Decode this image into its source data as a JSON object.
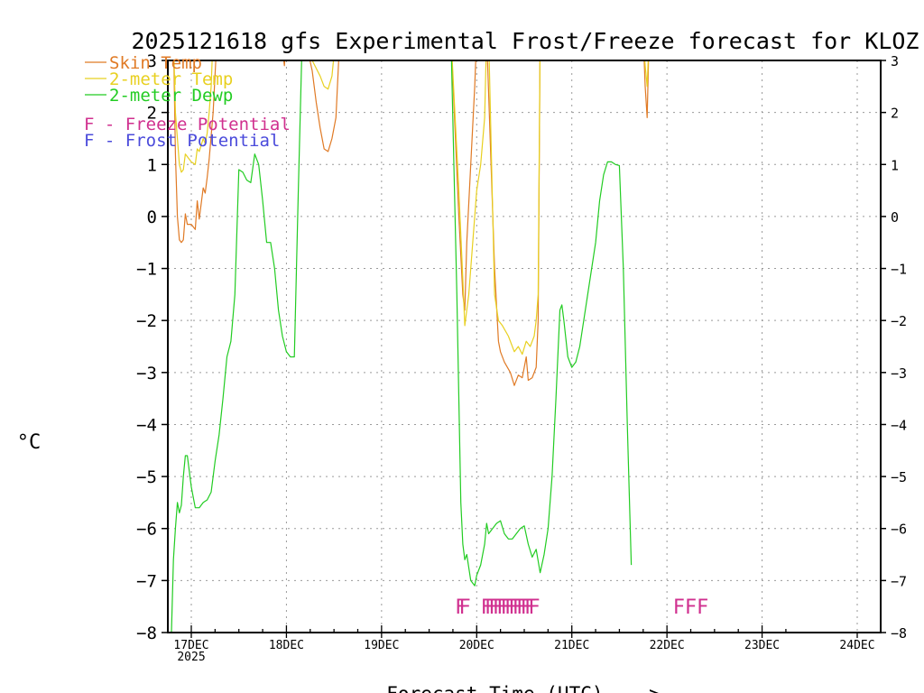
{
  "chart_data": {
    "type": "line",
    "title": "2025121618 gfs Experimental Frost/Freeze forecast for KLOZ",
    "xlabel": "Forecast Time (UTC) --->",
    "ylabel": "°C",
    "ylim": [
      -8,
      3
    ],
    "yticks": [
      3,
      2,
      1,
      0,
      -1,
      -2,
      -3,
      -4,
      -5,
      -6,
      -7,
      -8
    ],
    "ytick_labels": [
      "3",
      "2",
      "1",
      "0",
      "−1",
      "−2",
      "−3",
      "−4",
      "−5",
      "−6",
      "−7",
      "−8"
    ],
    "xlim_hours": [
      -6,
      150
    ],
    "xticks": [
      {
        "hour": 0,
        "label": "17DEC",
        "sub": "2025"
      },
      {
        "hour": 24,
        "label": "18DEC"
      },
      {
        "hour": 48,
        "label": "19DEC"
      },
      {
        "hour": 72,
        "label": "20DEC"
      },
      {
        "hour": 96,
        "label": "21DEC"
      },
      {
        "hour": 120,
        "label": "22DEC"
      },
      {
        "hour": 144,
        "label": "23DEC"
      },
      {
        "hour": 168,
        "label": "24DEC"
      }
    ],
    "grid": true,
    "legend": [
      {
        "label": "Skin Temp",
        "color": "#e07a25"
      },
      {
        "label": "2-meter Temp",
        "color": "#e8d020"
      },
      {
        "label": "2-meter Dewp",
        "color": "#22cc22"
      }
    ],
    "potential_legend": [
      {
        "letter": "F",
        "text": " - Freeze Potential",
        "color": "#d0308f"
      },
      {
        "letter": "F",
        "text": " - Frost Potential",
        "color": "#4b4bdb"
      }
    ],
    "series": [
      {
        "name": "Skin Temp",
        "color": "#e07a25",
        "points": [
          [
            -4.5,
            3.5
          ],
          [
            -4,
            1.2
          ],
          [
            -3.5,
            0.0
          ],
          [
            -3,
            -0.45
          ],
          [
            -2.5,
            -0.5
          ],
          [
            -2,
            -0.45
          ],
          [
            -1.5,
            0.05
          ],
          [
            -1,
            -0.15
          ],
          [
            0,
            -0.15
          ],
          [
            1,
            -0.25
          ],
          [
            1.5,
            0.3
          ],
          [
            2,
            -0.05
          ],
          [
            3,
            0.55
          ],
          [
            3.5,
            0.45
          ],
          [
            4,
            0.75
          ],
          [
            4.5,
            1.1
          ],
          [
            5.5,
            2.0
          ],
          [
            6.5,
            3.5
          ],
          null,
          [
            22.5,
            3.5
          ],
          [
            23.5,
            2.9
          ],
          [
            24,
            3.5
          ],
          null,
          [
            28.5,
            3.5
          ],
          [
            30.5,
            2.8
          ],
          [
            31.5,
            2.2
          ],
          [
            32.5,
            1.7
          ],
          [
            33.5,
            1.3
          ],
          [
            34.5,
            1.25
          ],
          [
            35.5,
            1.5
          ],
          [
            36.5,
            1.9
          ],
          [
            37.5,
            3.5
          ],
          null,
          [
            65.5,
            3.5
          ],
          [
            67.5,
            0.0
          ],
          [
            68.5,
            -1.5
          ],
          [
            69,
            -1.8
          ],
          [
            69.5,
            -0.5
          ],
          [
            70.5,
            1.0
          ],
          [
            71.5,
            2.5
          ],
          [
            72,
            3.5
          ],
          null,
          [
            74.5,
            3.5
          ],
          [
            76.5,
            -1.0
          ],
          [
            77.5,
            -2.4
          ],
          [
            78,
            -2.6
          ],
          [
            79,
            -2.8
          ],
          [
            80.5,
            -3.0
          ],
          [
            81.5,
            -3.25
          ],
          [
            82.5,
            -3.05
          ],
          [
            83.5,
            -3.1
          ],
          [
            84.5,
            -2.7
          ],
          [
            85,
            -3.15
          ],
          [
            86,
            -3.1
          ],
          [
            87,
            -2.9
          ],
          [
            87.5,
            -2.0
          ],
          [
            88,
            3.5
          ],
          null,
          [
            114,
            3.5
          ],
          [
            114.5,
            2.5
          ],
          [
            115,
            1.9
          ],
          [
            115.5,
            3.5
          ]
        ]
      },
      {
        "name": "2-meter Temp",
        "color": "#e8d020",
        "points": [
          [
            -4.5,
            3.5
          ],
          [
            -4,
            2.0
          ],
          [
            -3.5,
            1.5
          ],
          [
            -3,
            1.0
          ],
          [
            -2.5,
            0.85
          ],
          [
            -2,
            0.9
          ],
          [
            -1.5,
            1.2
          ],
          [
            -1,
            1.15
          ],
          [
            0,
            1.05
          ],
          [
            1,
            1.0
          ],
          [
            1.5,
            1.3
          ],
          [
            2,
            1.25
          ],
          [
            3,
            1.5
          ],
          [
            3.5,
            1.4
          ],
          [
            4,
            1.6
          ],
          [
            4.5,
            2.0
          ],
          [
            5,
            2.5
          ],
          [
            5.5,
            3.5
          ],
          null,
          [
            28,
            3.5
          ],
          [
            30.5,
            3.0
          ],
          [
            32.5,
            2.7
          ],
          [
            33.5,
            2.5
          ],
          [
            34.5,
            2.45
          ],
          [
            35.5,
            2.7
          ],
          [
            36.5,
            3.5
          ],
          null,
          [
            65.5,
            3.5
          ],
          [
            67.5,
            0.5
          ],
          [
            68.5,
            -1.2
          ],
          [
            69,
            -2.1
          ],
          [
            70,
            -1.5
          ],
          [
            71,
            -0.5
          ],
          [
            72,
            0.5
          ],
          [
            73,
            1.0
          ],
          [
            74,
            1.9
          ],
          [
            74.5,
            3.5
          ],
          null,
          [
            75,
            3.5
          ],
          [
            76.5,
            -1.5
          ],
          [
            77.5,
            -2.0
          ],
          [
            78.5,
            -2.1
          ],
          [
            80,
            -2.3
          ],
          [
            81.5,
            -2.6
          ],
          [
            82.5,
            -2.5
          ],
          [
            83.5,
            -2.65
          ],
          [
            84.5,
            -2.4
          ],
          [
            85.5,
            -2.5
          ],
          [
            86.5,
            -2.3
          ],
          [
            87,
            -2.0
          ],
          [
            87.5,
            -1.5
          ],
          [
            88,
            3.5
          ],
          null,
          [
            114,
            3.5
          ],
          [
            114.5,
            2.9
          ],
          [
            115,
            2.5
          ],
          [
            115.5,
            3.5
          ]
        ]
      },
      {
        "name": "2-meter Dewp",
        "color": "#22cc22",
        "points": [
          [
            -5,
            -8.0
          ],
          [
            -4.5,
            -6.6
          ],
          [
            -4,
            -6.0
          ],
          [
            -3.5,
            -5.5
          ],
          [
            -3,
            -5.7
          ],
          [
            -2.5,
            -5.55
          ],
          [
            -2,
            -5.0
          ],
          [
            -1.5,
            -4.6
          ],
          [
            -1,
            -4.6
          ],
          [
            0,
            -5.2
          ],
          [
            1,
            -5.6
          ],
          [
            2,
            -5.6
          ],
          [
            3,
            -5.5
          ],
          [
            4,
            -5.45
          ],
          [
            5,
            -5.3
          ],
          [
            6,
            -4.7
          ],
          [
            7,
            -4.2
          ],
          [
            8,
            -3.5
          ],
          [
            9,
            -2.7
          ],
          [
            10,
            -2.4
          ],
          [
            11,
            -1.5
          ],
          [
            12,
            0.9
          ],
          [
            13,
            0.85
          ],
          [
            14,
            0.7
          ],
          [
            15,
            0.65
          ],
          [
            16,
            1.2
          ],
          [
            17,
            1.0
          ],
          [
            18,
            0.3
          ],
          [
            19,
            -0.5
          ],
          [
            20,
            -0.5
          ],
          [
            21,
            -1.0
          ],
          [
            22,
            -1.8
          ],
          [
            23,
            -2.3
          ],
          [
            24,
            -2.6
          ],
          [
            25,
            -2.7
          ],
          [
            26,
            -2.7
          ],
          [
            27,
            0.5
          ],
          [
            28,
            3.5
          ],
          null,
          [
            65.5,
            3.5
          ],
          [
            67,
            -1.5
          ],
          [
            68,
            -5.5
          ],
          [
            68.5,
            -6.3
          ],
          [
            69,
            -6.6
          ],
          [
            69.5,
            -6.5
          ],
          [
            70.5,
            -7.0
          ],
          [
            71.5,
            -7.1
          ],
          [
            72,
            -6.9
          ],
          [
            73,
            -6.7
          ],
          [
            74,
            -6.3
          ],
          [
            74.5,
            -5.9
          ],
          [
            75,
            -6.1
          ],
          [
            76,
            -6.0
          ],
          [
            77,
            -5.9
          ],
          [
            78,
            -5.85
          ],
          [
            79,
            -6.1
          ],
          [
            80,
            -6.2
          ],
          [
            81,
            -6.2
          ],
          [
            82,
            -6.1
          ],
          [
            83,
            -6.0
          ],
          [
            84,
            -5.95
          ],
          [
            85,
            -6.3
          ],
          [
            86,
            -6.55
          ],
          [
            87,
            -6.4
          ],
          [
            88,
            -6.85
          ],
          [
            89,
            -6.5
          ],
          [
            90,
            -6.0
          ],
          [
            91,
            -5.0
          ],
          [
            92,
            -3.5
          ],
          [
            93,
            -1.8
          ],
          [
            93.5,
            -1.7
          ],
          [
            94,
            -2.0
          ],
          [
            95,
            -2.7
          ],
          [
            96,
            -2.9
          ],
          [
            97,
            -2.8
          ],
          [
            98,
            -2.5
          ],
          [
            99,
            -2.0
          ],
          [
            100,
            -1.5
          ],
          [
            101,
            -1.0
          ],
          [
            102,
            -0.5
          ],
          [
            103,
            0.3
          ],
          [
            104,
            0.8
          ],
          [
            105,
            1.05
          ],
          [
            106,
            1.05
          ],
          [
            107,
            1.0
          ],
          [
            108,
            0.98
          ],
          [
            109,
            -1.0
          ],
          [
            110,
            -4.0
          ],
          [
            111,
            -6.7
          ]
        ]
      }
    ],
    "freeze_markers": [
      {
        "hour": 68,
        "text": "F"
      },
      {
        "hour": 69,
        "text": "F"
      },
      {
        "hour": 74.5,
        "text": "F"
      },
      {
        "hour": 75.5,
        "text": "F"
      },
      {
        "hour": 76.5,
        "text": "F"
      },
      {
        "hour": 77.5,
        "text": "F"
      },
      {
        "hour": 78.5,
        "text": "F"
      },
      {
        "hour": 79.5,
        "text": "F"
      },
      {
        "hour": 80.5,
        "text": "F"
      },
      {
        "hour": 81.5,
        "text": "F"
      },
      {
        "hour": 82.5,
        "text": "F"
      },
      {
        "hour": 83.5,
        "text": "F"
      },
      {
        "hour": 84.5,
        "text": "F"
      },
      {
        "hour": 85.5,
        "text": "F"
      },
      {
        "hour": 86.5,
        "text": "F"
      },
      {
        "hour": 123,
        "text": "F"
      },
      {
        "hour": 126,
        "text": "F"
      },
      {
        "hour": 129,
        "text": "F"
      }
    ],
    "freeze_marker_value": -7.5,
    "freeze_marker_color": "#d0308f"
  }
}
